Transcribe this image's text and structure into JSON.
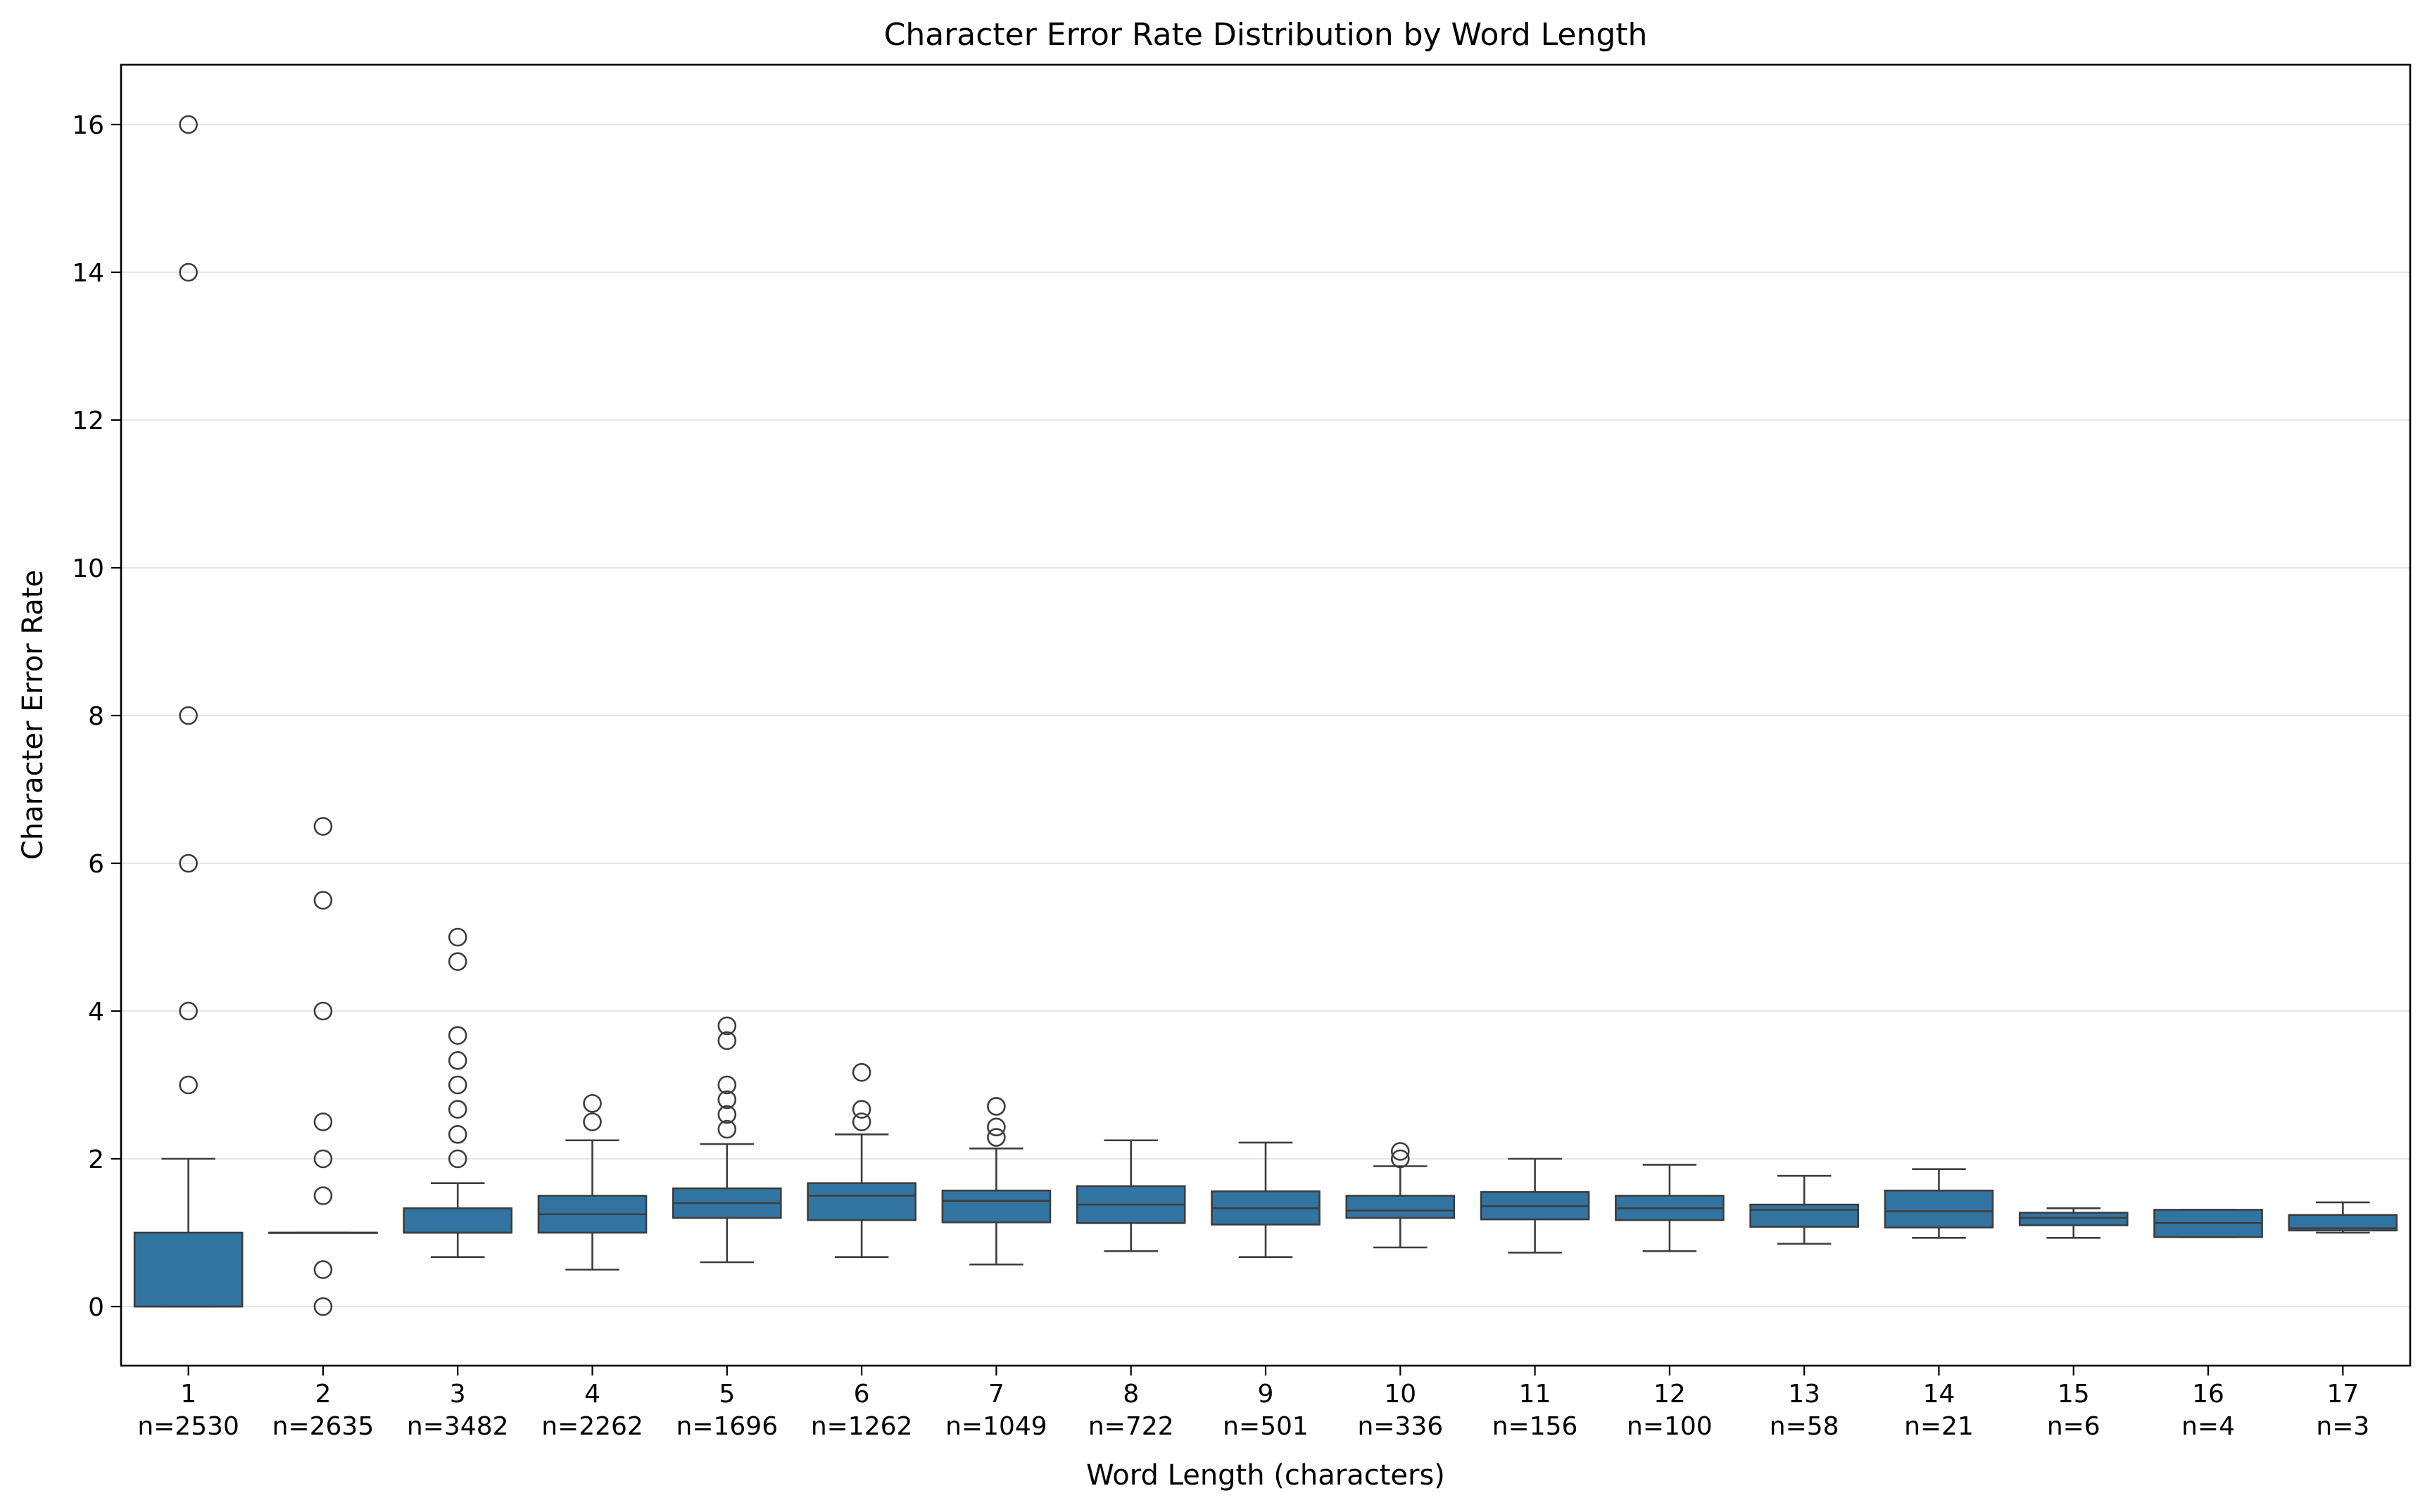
{
  "chart_data": {
    "type": "boxplot",
    "title": "Character Error Rate Distribution by Word Length",
    "xlabel": "Word Length (characters)",
    "ylabel": "Character Error Rate",
    "ylim": [
      -0.8,
      16.8
    ],
    "yticks": [
      0,
      2,
      4,
      6,
      8,
      10,
      12,
      14,
      16
    ],
    "grid": "horizontal",
    "box_color": "#3274a1",
    "edge_color": "#3d3d3d",
    "gridline_color": "#e6e6e6",
    "categories": [
      {
        "label": "1",
        "n_label": "n=2530",
        "q1": 0.0,
        "median": 0.0,
        "q3": 1.0,
        "whisker_low": 0.0,
        "whisker_high": 2.0,
        "outliers": [
          3.0,
          4.0,
          6.0,
          8.0,
          14.0,
          16.0
        ]
      },
      {
        "label": "2",
        "n_label": "n=2635",
        "q1": 1.0,
        "median": 1.0,
        "q3": 1.0,
        "whisker_low": 1.0,
        "whisker_high": 1.0,
        "outliers": [
          0.0,
          0.5,
          1.5,
          2.0,
          2.5,
          4.0,
          5.5,
          6.5
        ]
      },
      {
        "label": "3",
        "n_label": "n=3482",
        "q1": 1.0,
        "median": 1.0,
        "q3": 1.33,
        "whisker_low": 0.67,
        "whisker_high": 1.67,
        "outliers": [
          2.0,
          2.33,
          2.67,
          3.0,
          3.33,
          3.67,
          4.67,
          5.0
        ]
      },
      {
        "label": "4",
        "n_label": "n=2262",
        "q1": 1.0,
        "median": 1.25,
        "q3": 1.5,
        "whisker_low": 0.5,
        "whisker_high": 2.25,
        "outliers": [
          2.5,
          2.75
        ]
      },
      {
        "label": "5",
        "n_label": "n=1696",
        "q1": 1.2,
        "median": 1.4,
        "q3": 1.6,
        "whisker_low": 0.6,
        "whisker_high": 2.2,
        "outliers": [
          2.4,
          2.6,
          2.8,
          3.0,
          3.6,
          3.8
        ]
      },
      {
        "label": "6",
        "n_label": "n=1262",
        "q1": 1.17,
        "median": 1.5,
        "q3": 1.67,
        "whisker_low": 0.67,
        "whisker_high": 2.33,
        "outliers": [
          2.5,
          2.67,
          3.17
        ]
      },
      {
        "label": "7",
        "n_label": "n=1049",
        "q1": 1.14,
        "median": 1.43,
        "q3": 1.57,
        "whisker_low": 0.57,
        "whisker_high": 2.14,
        "outliers": [
          2.29,
          2.43,
          2.71
        ]
      },
      {
        "label": "8",
        "n_label": "n=722",
        "q1": 1.13,
        "median": 1.38,
        "q3": 1.63,
        "whisker_low": 0.75,
        "whisker_high": 2.25,
        "outliers": []
      },
      {
        "label": "9",
        "n_label": "n=501",
        "q1": 1.11,
        "median": 1.33,
        "q3": 1.56,
        "whisker_low": 0.67,
        "whisker_high": 2.22,
        "outliers": []
      },
      {
        "label": "10",
        "n_label": "n=336",
        "q1": 1.2,
        "median": 1.3,
        "q3": 1.5,
        "whisker_low": 0.8,
        "whisker_high": 1.9,
        "outliers": [
          2.0,
          2.1
        ]
      },
      {
        "label": "11",
        "n_label": "n=156",
        "q1": 1.18,
        "median": 1.36,
        "q3": 1.55,
        "whisker_low": 0.73,
        "whisker_high": 2.0,
        "outliers": []
      },
      {
        "label": "12",
        "n_label": "n=100",
        "q1": 1.17,
        "median": 1.33,
        "q3": 1.5,
        "whisker_low": 0.75,
        "whisker_high": 1.92,
        "outliers": []
      },
      {
        "label": "13",
        "n_label": "n=58",
        "q1": 1.08,
        "median": 1.31,
        "q3": 1.38,
        "whisker_low": 0.85,
        "whisker_high": 1.77,
        "outliers": []
      },
      {
        "label": "14",
        "n_label": "n=21",
        "q1": 1.07,
        "median": 1.29,
        "q3": 1.57,
        "whisker_low": 0.93,
        "whisker_high": 1.86,
        "outliers": []
      },
      {
        "label": "15",
        "n_label": "n=6",
        "q1": 1.1,
        "median": 1.2,
        "q3": 1.27,
        "whisker_low": 0.93,
        "whisker_high": 1.33,
        "outliers": []
      },
      {
        "label": "16",
        "n_label": "n=4",
        "q1": 0.94,
        "median": 1.13,
        "q3": 1.31,
        "whisker_low": 0.94,
        "whisker_high": 1.31,
        "outliers": []
      },
      {
        "label": "17",
        "n_label": "n=3",
        "q1": 1.03,
        "median": 1.06,
        "q3": 1.24,
        "whisker_low": 1.0,
        "whisker_high": 1.41,
        "outliers": []
      }
    ]
  }
}
